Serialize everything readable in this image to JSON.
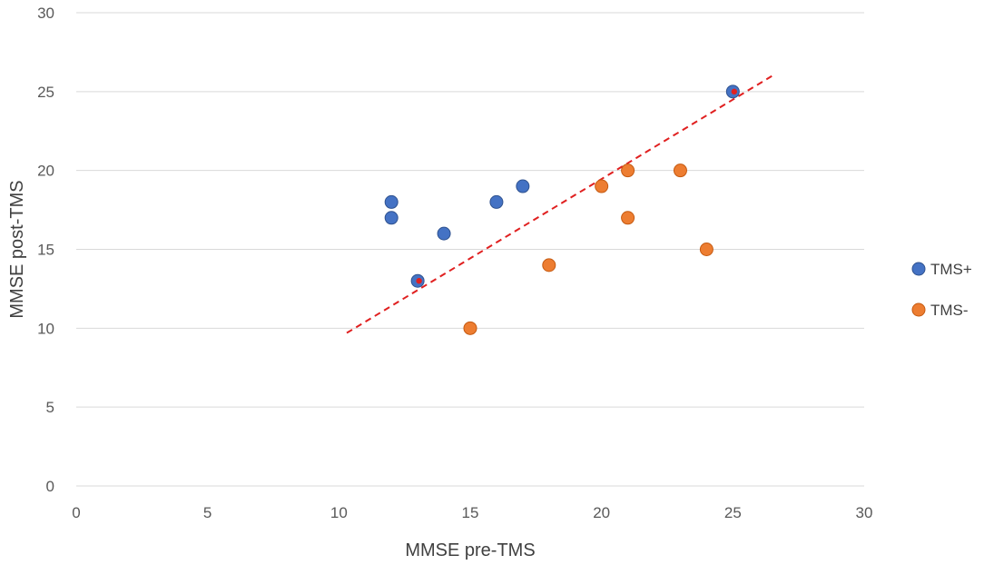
{
  "chart_data": {
    "type": "scatter",
    "title": "",
    "xlabel": "MMSE pre-TMS",
    "ylabel": "MMSE post-TMS",
    "xlim": [
      0,
      30
    ],
    "ylim": [
      0,
      30
    ],
    "x_ticks": [
      0,
      5,
      10,
      15,
      20,
      25,
      30
    ],
    "y_ticks": [
      0,
      5,
      10,
      15,
      20,
      25,
      30
    ],
    "grid": "horizontal",
    "legend_position": "right",
    "series": [
      {
        "name": "TMS+",
        "color": "#4472C4",
        "points": [
          [
            12,
            18
          ],
          [
            12,
            17
          ],
          [
            13,
            13
          ],
          [
            14,
            16
          ],
          [
            16,
            18
          ],
          [
            17,
            19
          ],
          [
            25,
            25
          ]
        ],
        "highlighted_points": [
          [
            13,
            13
          ],
          [
            25,
            25
          ]
        ]
      },
      {
        "name": "TMS-",
        "color": "#ED7D31",
        "points": [
          [
            15,
            10
          ],
          [
            18,
            14
          ],
          [
            20,
            19
          ],
          [
            21,
            20
          ],
          [
            21,
            17
          ],
          [
            23,
            20
          ],
          [
            24,
            15
          ]
        ]
      }
    ],
    "highlight_color": "#E02020",
    "trendline": {
      "style": "dashed",
      "color": "#E02020",
      "from": [
        10.3,
        9.7
      ],
      "to": [
        26.5,
        26
      ]
    }
  }
}
